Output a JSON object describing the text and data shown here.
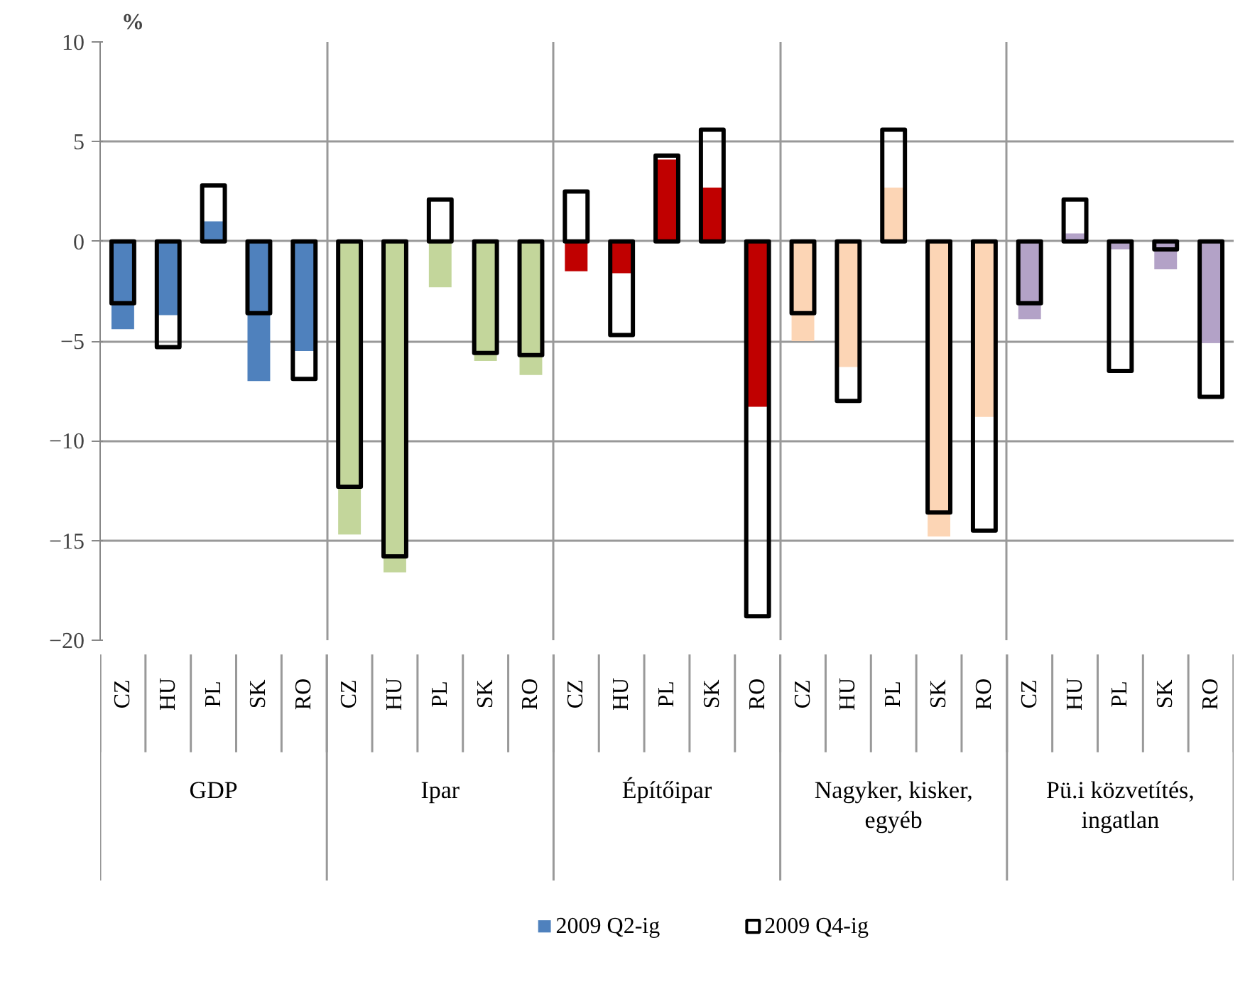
{
  "chart_data": {
    "type": "bar",
    "ylabel": "%",
    "categories": [
      "CZ",
      "HU",
      "PL",
      "SK",
      "RO",
      "CZ",
      "HU",
      "PL",
      "SK",
      "RO",
      "CZ",
      "HU",
      "PL",
      "SK",
      "RO",
      "CZ",
      "HU",
      "PL",
      "SK",
      "RO",
      "CZ",
      "HU",
      "PL",
      "SK",
      "RO"
    ],
    "annotations": [
      "GDP",
      "Ipar",
      "Építőipar",
      "Nagyker, kisker,\negyéb",
      "Pü.i közvetítés,\ningatlan"
    ],
    "series": [
      {
        "name": "2009 Q2-ig",
        "color": "#4f81bd",
        "colors": [
          "#4f81bd",
          "#4f81bd",
          "#4f81bd",
          "#4f81bd",
          "#4f81bd",
          "#c3d69b",
          "#c3d69b",
          "#c3d69b",
          "#c3d69b",
          "#c3d69b",
          "#c00000",
          "#c00000",
          "#c00000",
          "#c00000",
          "#c00000",
          "#fcd5b5",
          "#fcd5b5",
          "#fcd5b5",
          "#fcd5b5",
          "#fcd5b5",
          "#b3a2c7",
          "#b3a2c7",
          "#b3a2c7",
          "#b3a2c7",
          "#b3a2c7"
        ],
        "values": [
          -4.4,
          -3.7,
          1.0,
          -7.0,
          -5.5,
          -14.7,
          -16.6,
          -2.3,
          -6.0,
          -6.7,
          -1.5,
          -1.6,
          4.1,
          2.7,
          -8.3,
          -5.0,
          -6.3,
          2.7,
          -14.8,
          -8.8,
          -3.9,
          0.4,
          -0.4,
          -1.4,
          -5.1
        ]
      },
      {
        "name": "2009 Q4-ig",
        "color": "#000000",
        "values": [
          -3.1,
          -5.3,
          2.8,
          -3.6,
          -6.9,
          -12.3,
          -15.8,
          2.1,
          -5.6,
          -5.7,
          2.5,
          -4.7,
          4.3,
          5.6,
          -18.8,
          -3.6,
          -8.0,
          5.6,
          -13.6,
          -14.5,
          -3.1,
          2.1,
          -6.5,
          -0.4,
          -7.8
        ]
      }
    ],
    "ylim": [
      -20,
      10
    ],
    "yticks": [
      -20,
      -15,
      -10,
      -5,
      0,
      5,
      10
    ],
    "grid": "y",
    "legend": "bottom"
  }
}
